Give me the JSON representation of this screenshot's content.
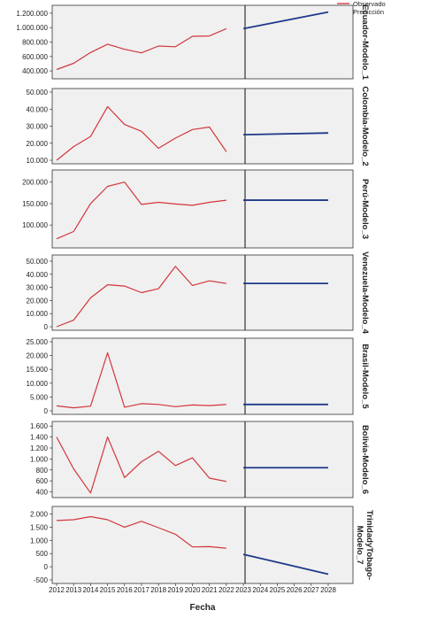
{
  "colors": {
    "observed": "#d2363c",
    "predicted": "#1f3a8a",
    "panel_bg": "#f0f0f0"
  },
  "chart_data": {
    "type": "line",
    "xlabel": "Fecha",
    "x_ticks": [
      "2012",
      "2013",
      "2014",
      "2015",
      "2016",
      "2017",
      "2018",
      "2019",
      "2020",
      "2021",
      "2022",
      "2023",
      "2024",
      "2025",
      "2026",
      "2027",
      "2028"
    ],
    "legend": {
      "observed": "Observado",
      "predicted": "Predicción",
      "placement": "top-right"
    },
    "observed_x": [
      2012,
      2013,
      2014,
      2015,
      2016,
      2017,
      2018,
      2019,
      2020,
      2021,
      2022
    ],
    "panels": [
      {
        "label": "Ecuador-Modelo_1",
        "yticks": [
          400000,
          600000,
          800000,
          1000000,
          1200000
        ],
        "ytick_labels": [
          "400.000",
          "600.000",
          "800.000",
          "1.000.000",
          "1.200.000"
        ],
        "ylim": [
          340000,
          1260000
        ],
        "observed": [
          420000,
          505000,
          655000,
          770000,
          700000,
          650000,
          745000,
          735000,
          880000,
          885000,
          985000
        ],
        "predicted": {
          "x": [
            2023,
            2028
          ],
          "y": [
            985000,
            1215000
          ]
        }
      },
      {
        "label": "Colombia-Modelo_2",
        "yticks": [
          10000,
          20000,
          30000,
          40000,
          50000
        ],
        "ytick_labels": [
          "10.000",
          "20.000",
          "30.000",
          "40.000",
          "50.000"
        ],
        "ylim": [
          10000,
          50000
        ],
        "observed": [
          10000,
          18000,
          24000,
          41500,
          31000,
          27000,
          17000,
          23000,
          28000,
          29500,
          15000
        ],
        "predicted": {
          "x": [
            2023,
            2028
          ],
          "y": [
            25000,
            26000
          ]
        }
      },
      {
        "label": "Perú-Modelo_3",
        "yticks": [
          100000,
          150000,
          200000
        ],
        "ytick_labels": [
          "100.000",
          "150.000",
          "200.000"
        ],
        "ylim": [
          55000,
          220000
        ],
        "observed": [
          68000,
          85000,
          150000,
          190000,
          200000,
          148000,
          153000,
          149000,
          146000,
          153000,
          158000
        ],
        "predicted": {
          "x": [
            2023,
            2028
          ],
          "y": [
            158000,
            158000
          ]
        }
      },
      {
        "label": "Venezuela-Modelo_4",
        "yticks": [
          0,
          10000,
          20000,
          30000,
          40000,
          50000
        ],
        "ytick_labels": [
          "0",
          "10.000",
          "20.000",
          "30.000",
          "40.000",
          "50.000"
        ],
        "ylim": [
          0,
          52000
        ],
        "observed": [
          0,
          5000,
          22000,
          32000,
          31000,
          26000,
          29000,
          46000,
          31500,
          35000,
          33000
        ],
        "predicted": {
          "x": [
            2023,
            2028
          ],
          "y": [
            33000,
            33000
          ]
        }
      },
      {
        "label": "Brasil-Modelo_5",
        "yticks": [
          0,
          5000,
          10000,
          15000,
          20000,
          25000
        ],
        "ytick_labels": [
          "0",
          "5.000",
          "10.000",
          "15.000",
          "20.000",
          "25.000"
        ],
        "ylim": [
          0,
          25000
        ],
        "observed": [
          1800,
          1100,
          1700,
          21000,
          1300,
          2600,
          2300,
          1500,
          2100,
          1900,
          2300
        ],
        "predicted": {
          "x": [
            2023,
            2028
          ],
          "y": [
            2300,
            2300
          ]
        }
      },
      {
        "label": "Bolivia-Modelo_6",
        "yticks": [
          400,
          600,
          800,
          1000,
          1200,
          1400,
          1600
        ],
        "ytick_labels": [
          "400",
          "600",
          "800",
          "1.000",
          "1.200",
          "1.400",
          "1.600"
        ],
        "ylim": [
          360,
          1620
        ],
        "observed": [
          1400,
          820,
          380,
          1400,
          660,
          950,
          1140,
          880,
          1020,
          650,
          590
        ],
        "predicted": {
          "x": [
            2023,
            2028
          ],
          "y": [
            840,
            840
          ]
        }
      },
      {
        "label": "TrinidadyTobago-Modelo_7",
        "label_lines": [
          "TrinidadyTobago-",
          "Modelo_7"
        ],
        "yticks": [
          -500,
          0,
          500,
          1000,
          1500,
          2000
        ],
        "ytick_labels": [
          "-500",
          "0",
          "500",
          "1.000",
          "1.500",
          "2.000"
        ],
        "ylim": [
          -500,
          2150
        ],
        "observed": [
          1750,
          1780,
          1900,
          1780,
          1500,
          1720,
          1480,
          1230,
          750,
          760,
          700
        ],
        "predicted": {
          "x": [
            2023,
            2028
          ],
          "y": [
            470,
            -280
          ]
        }
      }
    ]
  }
}
